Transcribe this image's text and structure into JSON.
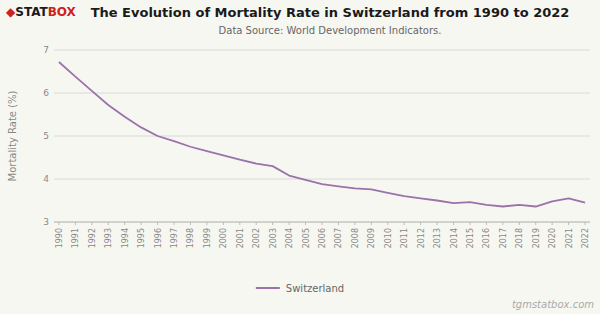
{
  "chart_data": {
    "type": "line",
    "title": "The Evolution of Mortality Rate in Switzerland from 1990 to 2022",
    "subtitle": "Data Source: World Development Indicators.",
    "ylabel": "Mortality Rate (%)",
    "x": [
      1990,
      1991,
      1992,
      1993,
      1994,
      1995,
      1996,
      1997,
      1998,
      1999,
      2000,
      2001,
      2002,
      2003,
      2004,
      2005,
      2006,
      2007,
      2008,
      2009,
      2010,
      2011,
      2012,
      2013,
      2014,
      2015,
      2016,
      2017,
      2018,
      2019,
      2020,
      2021,
      2022
    ],
    "series": [
      {
        "name": "Switzerland",
        "color": "#9B72AA",
        "values": [
          6.72,
          6.38,
          6.05,
          5.72,
          5.45,
          5.2,
          5.0,
          4.88,
          4.75,
          4.65,
          4.55,
          4.45,
          4.36,
          4.3,
          4.08,
          3.98,
          3.88,
          3.83,
          3.78,
          3.76,
          3.68,
          3.6,
          3.55,
          3.5,
          3.44,
          3.46,
          3.4,
          3.36,
          3.4,
          3.36,
          3.48,
          3.55,
          3.45
        ]
      }
    ],
    "xlim": [
      1989.7,
      2022.3
    ],
    "xticks": [
      1990,
      1991,
      1992,
      1993,
      1994,
      1995,
      1996,
      1997,
      1998,
      1999,
      2000,
      2001,
      2002,
      2003,
      2004,
      2005,
      2006,
      2007,
      2008,
      2009,
      2010,
      2011,
      2012,
      2013,
      2014,
      2015,
      2016,
      2017,
      2018,
      2019,
      2020,
      2021,
      2022
    ],
    "ylim": [
      3.0,
      7.0
    ],
    "yticks": [
      3,
      4,
      5,
      6,
      7
    ],
    "grid": true,
    "legend": "bottom",
    "annotations": [
      {
        "text": "◆",
        "color": "#cc2222"
      },
      {
        "text": "STAT",
        "color": "#1a1a1a"
      },
      {
        "text": "BOX",
        "color": "#cc2222"
      },
      {
        "text": "tgmstatbox.com",
        "color": "#aaaaaa"
      }
    ]
  }
}
